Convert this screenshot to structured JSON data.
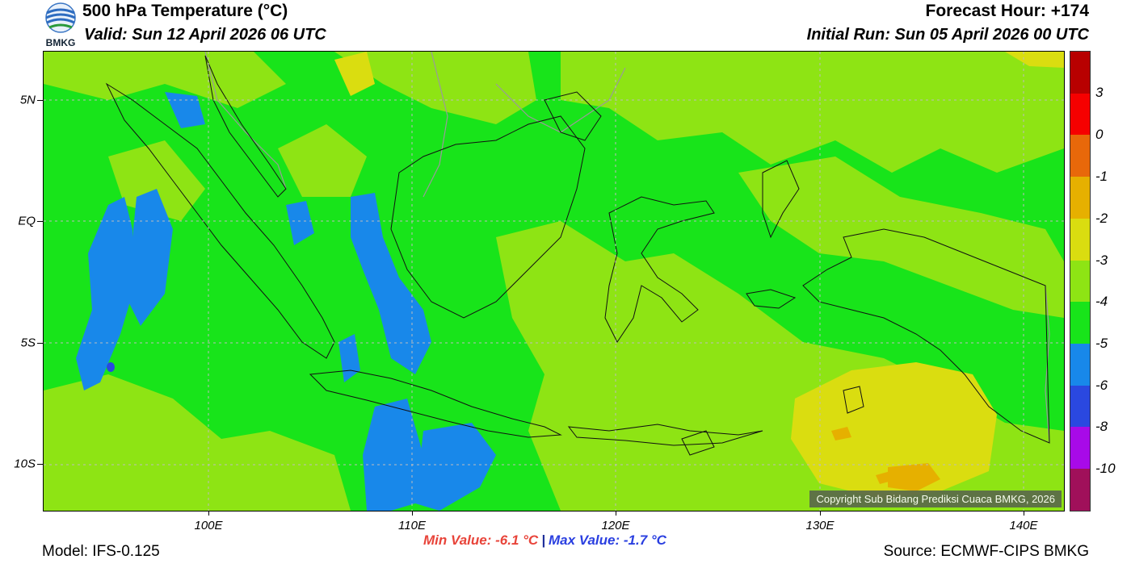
{
  "header": {
    "logo_text": "BMKG",
    "title": "500 hPa Temperature (°C)",
    "valid": "Valid: Sun 12 April 2026 06 UTC",
    "forecast_hour": "Forecast Hour: +174",
    "initial_run": "Initial Run: Sun 05 April 2026 00 UTC"
  },
  "map": {
    "lat_labels": [
      "5N",
      "EQ",
      "5S",
      "10S"
    ],
    "lon_labels": [
      "100E",
      "110E",
      "120E",
      "130E",
      "140E"
    ],
    "copyright": "Copyright Sub Bidang Prediksi Cuaca BMKG, 2026",
    "background_color": "#18e41a",
    "coast_color": "#111111",
    "border_color": "#9a9a9a"
  },
  "colorbar": {
    "labels": [
      "3",
      "0",
      "-1",
      "-2",
      "-3",
      "-4",
      "-5",
      "-6",
      "-8",
      "-10"
    ],
    "colors": [
      "#b80000",
      "#f60000",
      "#e8680a",
      "#e6b000",
      "#dadd10",
      "#8ee414",
      "#18e41a",
      "#1888ea",
      "#2a48e0",
      "#a80ae8",
      "#a0105a"
    ]
  },
  "footer": {
    "min_value": "Min Value: -6.1 °C",
    "separator": "|",
    "max_value": "Max Value: -1.7 °C",
    "model": "Model: IFS-0.125",
    "source": "Source: ECMWF-CIPS BMKG"
  }
}
